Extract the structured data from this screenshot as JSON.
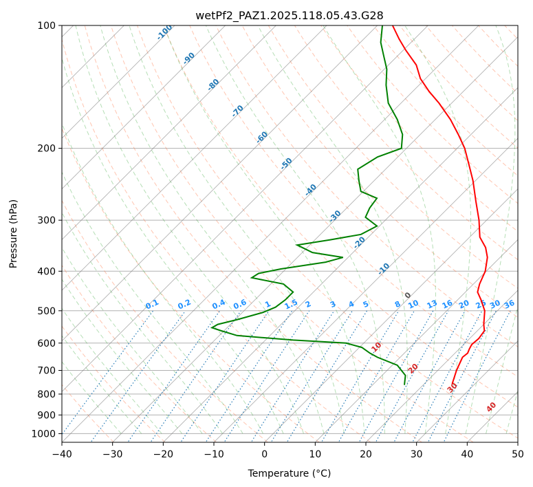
{
  "chart_data": {
    "type": "line",
    "title": "wetPf2_PAZ1.2025.118.05.43.G28",
    "xlabel": "Temperature (°C)",
    "ylabel": "Pressure (hPa)",
    "xlim": [
      -40,
      50
    ],
    "ylim": [
      1050,
      100
    ],
    "y_scale": "log",
    "x_ticks": [
      -40,
      -30,
      -20,
      -10,
      0,
      10,
      20,
      30,
      40,
      50
    ],
    "y_ticks": [
      1000,
      900,
      800,
      700,
      600,
      500,
      400,
      300,
      200,
      100
    ],
    "skew": "skew-T log-P",
    "grid": true,
    "colors": {
      "temperature": "#ff0000",
      "dewpoint": "#008000",
      "isotherms": "#7f7f7f",
      "dry_adiabats": "#ff7f50",
      "moist_adiabats": "#2ca02c",
      "mixing_ratio": "#1f77b4",
      "isotherm_labels": "#1f77b4",
      "moist_labels": "#d62728",
      "mixing_labels": "#1e90ff"
    },
    "series": [
      {
        "name": "",
        "role": "temperature",
        "points": [
          {
            "p": 755,
            "t": 25.5
          },
          {
            "p": 700,
            "t": 23.7
          },
          {
            "p": 650,
            "t": 22.3
          },
          {
            "p": 635,
            "t": 22.5
          },
          {
            "p": 620,
            "t": 22.0
          },
          {
            "p": 605,
            "t": 21.6
          },
          {
            "p": 585,
            "t": 21.8
          },
          {
            "p": 560,
            "t": 21.4
          },
          {
            "p": 540,
            "t": 20.0
          },
          {
            "p": 500,
            "t": 17.5
          },
          {
            "p": 470,
            "t": 14.6
          },
          {
            "p": 450,
            "t": 12.4
          },
          {
            "p": 430,
            "t": 11.2
          },
          {
            "p": 400,
            "t": 9.8
          },
          {
            "p": 370,
            "t": 7.5
          },
          {
            "p": 350,
            "t": 5.2
          },
          {
            "p": 330,
            "t": 2.0
          },
          {
            "p": 300,
            "t": -1.5
          },
          {
            "p": 270,
            "t": -5.8
          },
          {
            "p": 240,
            "t": -10.5
          },
          {
            "p": 220,
            "t": -14.3
          },
          {
            "p": 200,
            "t": -18.5
          },
          {
            "p": 185,
            "t": -22.5
          },
          {
            "p": 170,
            "t": -27.0
          },
          {
            "p": 155,
            "t": -32.5
          },
          {
            "p": 145,
            "t": -36.8
          },
          {
            "p": 135,
            "t": -41.0
          },
          {
            "p": 125,
            "t": -44.5
          },
          {
            "p": 115,
            "t": -49.5
          },
          {
            "p": 108,
            "t": -53.0
          },
          {
            "p": 100,
            "t": -57.0
          }
        ]
      },
      {
        "name": "",
        "role": "dewpoint",
        "points": [
          {
            "p": 760,
            "t": 16.3
          },
          {
            "p": 720,
            "t": 14.6
          },
          {
            "p": 680,
            "t": 11.0
          },
          {
            "p": 650,
            "t": 5.5
          },
          {
            "p": 635,
            "t": 3.2
          },
          {
            "p": 615,
            "t": 0.5
          },
          {
            "p": 600,
            "t": -3.5
          },
          {
            "p": 590,
            "t": -14.5
          },
          {
            "p": 575,
            "t": -26.5
          },
          {
            "p": 560,
            "t": -30.5
          },
          {
            "p": 550,
            "t": -33.0
          },
          {
            "p": 540,
            "t": -32.5
          },
          {
            "p": 525,
            "t": -29.5
          },
          {
            "p": 505,
            "t": -26.0
          },
          {
            "p": 490,
            "t": -24.5
          },
          {
            "p": 470,
            "t": -24.0
          },
          {
            "p": 450,
            "t": -24.0
          },
          {
            "p": 430,
            "t": -27.5
          },
          {
            "p": 415,
            "t": -35.0
          },
          {
            "p": 405,
            "t": -34.5
          },
          {
            "p": 395,
            "t": -31.0
          },
          {
            "p": 380,
            "t": -23.5
          },
          {
            "p": 370,
            "t": -21.0
          },
          {
            "p": 360,
            "t": -28.0
          },
          {
            "p": 345,
            "t": -32.5
          },
          {
            "p": 335,
            "t": -27.0
          },
          {
            "p": 325,
            "t": -22.0
          },
          {
            "p": 310,
            "t": -20.5
          },
          {
            "p": 295,
            "t": -24.5
          },
          {
            "p": 280,
            "t": -25.5
          },
          {
            "p": 265,
            "t": -26.0
          },
          {
            "p": 255,
            "t": -30.5
          },
          {
            "p": 240,
            "t": -33.0
          },
          {
            "p": 225,
            "t": -35.5
          },
          {
            "p": 210,
            "t": -34.0
          },
          {
            "p": 200,
            "t": -31.0
          },
          {
            "p": 185,
            "t": -33.5
          },
          {
            "p": 170,
            "t": -37.5
          },
          {
            "p": 155,
            "t": -42.5
          },
          {
            "p": 140,
            "t": -46.5
          },
          {
            "p": 128,
            "t": -49.5
          },
          {
            "p": 118,
            "t": -53.0
          },
          {
            "p": 110,
            "t": -56.0
          },
          {
            "p": 100,
            "t": -59.0
          }
        ]
      }
    ],
    "isotherm_labels": [
      "-100",
      "-90",
      "-80",
      "-70",
      "-60",
      "-50",
      "-40",
      "-30",
      "-20",
      "-10",
      "0"
    ],
    "moist_adiabat_labels": [
      "10",
      "20",
      "30",
      "40"
    ],
    "mixing_ratio_labels": [
      "0.1",
      "0.2",
      "0.4",
      "0.6",
      "1",
      "1.5",
      "2",
      "3",
      "4",
      "5",
      "8",
      "10",
      "13",
      "16",
      "20",
      "25",
      "30",
      "36"
    ]
  }
}
